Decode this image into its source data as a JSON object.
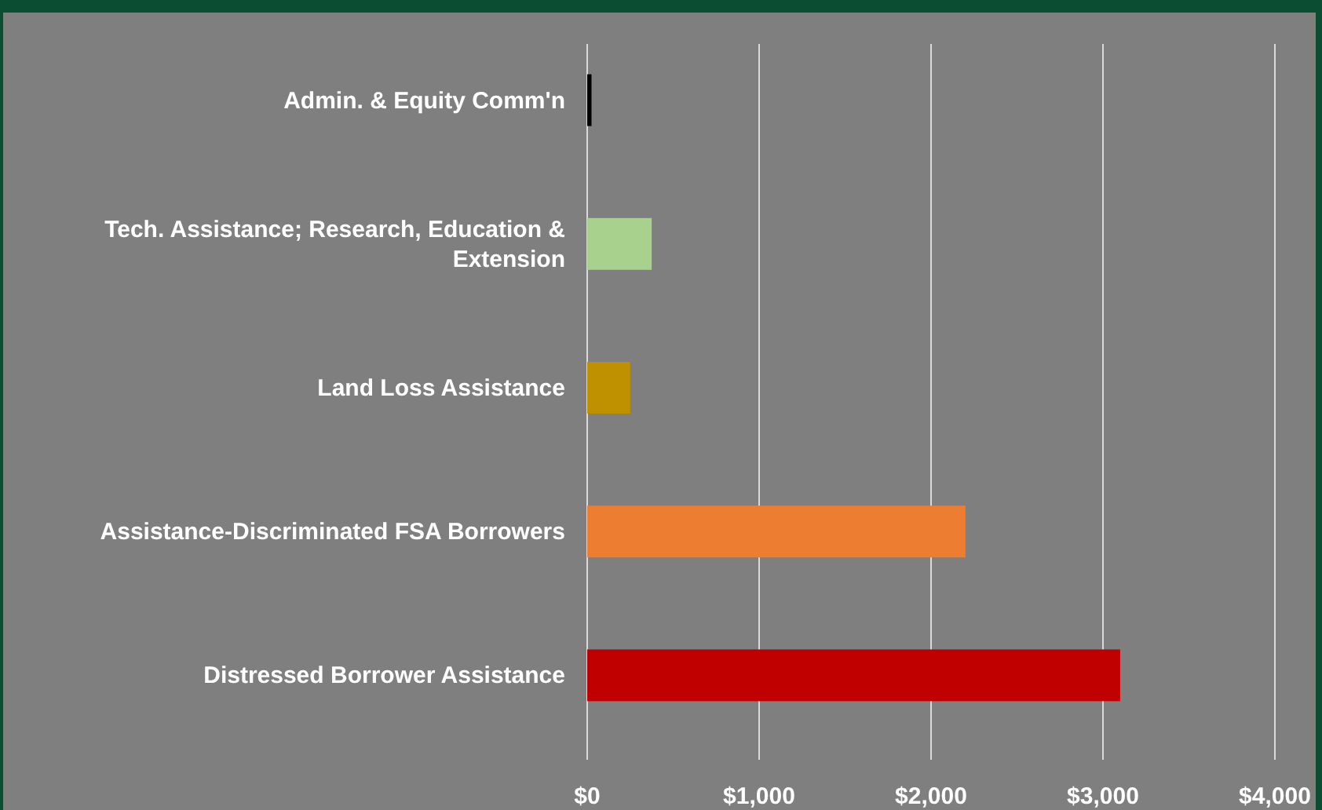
{
  "chart_data": {
    "type": "bar",
    "orientation": "horizontal",
    "categories": [
      "Admin. & Equity Comm'n",
      "Tech. Assistance; Research, Education & Extension",
      "Land Loss Assistance",
      "Assistance-Discriminated FSA Borrowers",
      "Distressed Borrower Assistance"
    ],
    "values": [
      25,
      375,
      250,
      2200,
      3100
    ],
    "colors": [
      "#000000",
      "#a9d18e",
      "#bf9000",
      "#ed7d31",
      "#c00000"
    ],
    "xlim": [
      0,
      4000
    ],
    "xticks": [
      {
        "value": 0,
        "label": "$0"
      },
      {
        "value": 1000,
        "label": "$1,000"
      },
      {
        "value": 2000,
        "label": "$2,000"
      },
      {
        "value": 3000,
        "label": "$3,000"
      },
      {
        "value": 4000,
        "label": "$4,000"
      }
    ],
    "grid": "x"
  }
}
